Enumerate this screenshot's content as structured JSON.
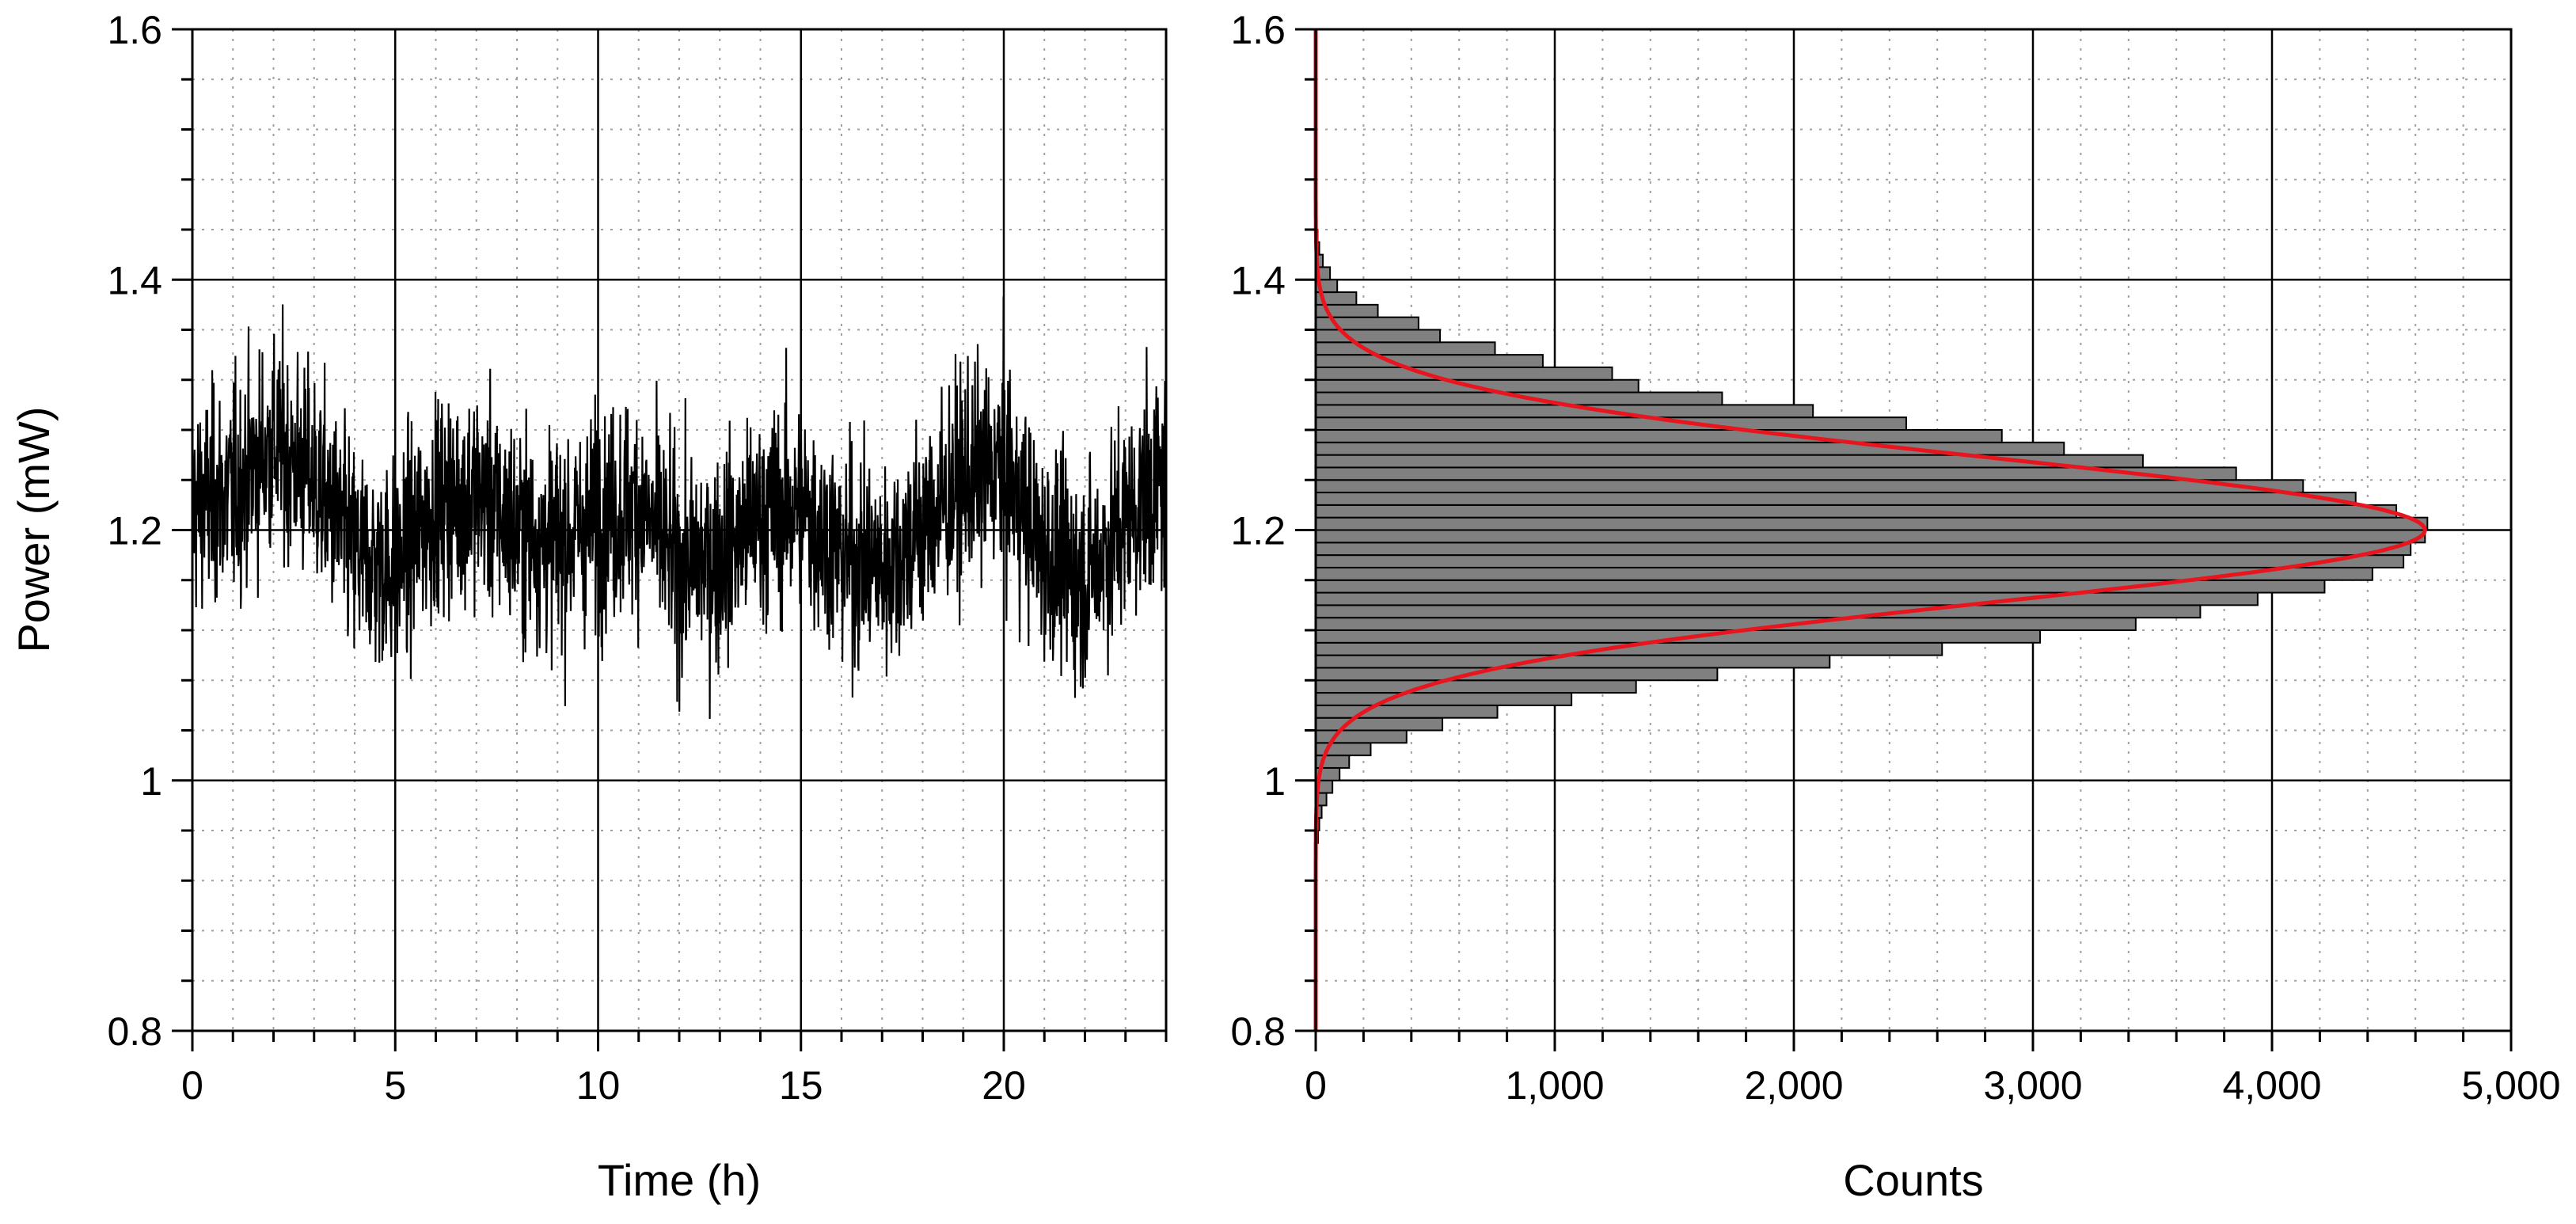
{
  "colors": {
    "time_series": "#000000",
    "histogram_fill": "#808080",
    "histogram_edge": "#000000",
    "fit_curve": "#e8141e",
    "major_grid": "#000000",
    "minor_grid": "#a0a0a0",
    "background": "#ffffff"
  },
  "chart_data": [
    {
      "type": "line",
      "title": "",
      "xlabel": "Time (h)",
      "ylabel": "Power (mW)",
      "xlim": [
        0,
        24
      ],
      "ylim": [
        0.8,
        1.6
      ],
      "x_ticks": [
        0,
        5,
        10,
        15,
        20
      ],
      "x_tick_labels": [
        "0",
        "5",
        "10",
        "15",
        "20"
      ],
      "y_ticks": [
        0.8,
        1,
        1.2,
        1.4,
        1.6
      ],
      "y_tick_labels": [
        "0.8",
        "1",
        "1.2",
        "1.4",
        "1.6"
      ],
      "grid": "major solid, minor dotted",
      "series": [
        {
          "name": "",
          "mean_power_mW": 1.2,
          "noise_std_mW": 0.06,
          "approx_min_mW": 0.95,
          "approx_max_mW": 1.46,
          "profile_times_h": [
            0,
            1,
            2,
            3,
            4,
            5,
            6,
            7,
            8,
            9,
            10,
            11,
            12,
            13,
            14,
            15,
            16,
            17,
            18,
            19,
            20,
            21,
            22,
            23,
            24
          ],
          "profile_mean_mW": [
            1.22,
            1.23,
            1.27,
            1.24,
            1.18,
            1.17,
            1.22,
            1.23,
            1.2,
            1.19,
            1.21,
            1.22,
            1.17,
            1.18,
            1.21,
            1.22,
            1.18,
            1.17,
            1.2,
            1.24,
            1.25,
            1.18,
            1.16,
            1.21,
            1.24
          ]
        }
      ]
    },
    {
      "type": "bar",
      "orientation": "horizontal",
      "title": "",
      "xlabel": "Counts",
      "ylabel": "",
      "xlim": [
        0,
        5000
      ],
      "ylim": [
        0.8,
        1.6
      ],
      "x_ticks": [
        0,
        1000,
        2000,
        3000,
        4000,
        5000
      ],
      "x_tick_labels": [
        "0",
        "1,000",
        "2,000",
        "3,000",
        "4,000",
        "5,000"
      ],
      "y_ticks": [
        0.8,
        1,
        1.2,
        1.4,
        1.6
      ],
      "y_tick_labels": [
        "0.8",
        "1",
        "1.2",
        "1.4",
        "1.6"
      ],
      "grid": "major solid, minor dotted",
      "bin_width_mW": 0.01,
      "bin_centers_mW": [
        0.945,
        0.955,
        0.965,
        0.975,
        0.985,
        0.995,
        1.005,
        1.015,
        1.025,
        1.035,
        1.045,
        1.055,
        1.065,
        1.075,
        1.085,
        1.095,
        1.105,
        1.115,
        1.125,
        1.135,
        1.145,
        1.155,
        1.165,
        1.175,
        1.185,
        1.195,
        1.205,
        1.215,
        1.225,
        1.235,
        1.245,
        1.255,
        1.265,
        1.275,
        1.285,
        1.295,
        1.305,
        1.315,
        1.325,
        1.335,
        1.345,
        1.355,
        1.365,
        1.375,
        1.385,
        1.395,
        1.405,
        1.415,
        1.425,
        1.435,
        1.445,
        1.455
      ],
      "counts": [
        5,
        10,
        15,
        25,
        45,
        70,
        100,
        140,
        230,
        380,
        530,
        760,
        1070,
        1340,
        1680,
        2150,
        2620,
        3030,
        3430,
        3700,
        3940,
        4220,
        4420,
        4550,
        4580,
        4640,
        4650,
        4520,
        4350,
        4130,
        3850,
        3460,
        3130,
        2870,
        2470,
        2080,
        1700,
        1350,
        1240,
        950,
        750,
        520,
        430,
        260,
        170,
        90,
        60,
        30,
        15,
        8,
        4,
        2
      ],
      "fit": {
        "type": "gaussian",
        "mean_mW": 1.2,
        "sigma_mW": 0.058,
        "peak_counts": 4640
      }
    }
  ]
}
